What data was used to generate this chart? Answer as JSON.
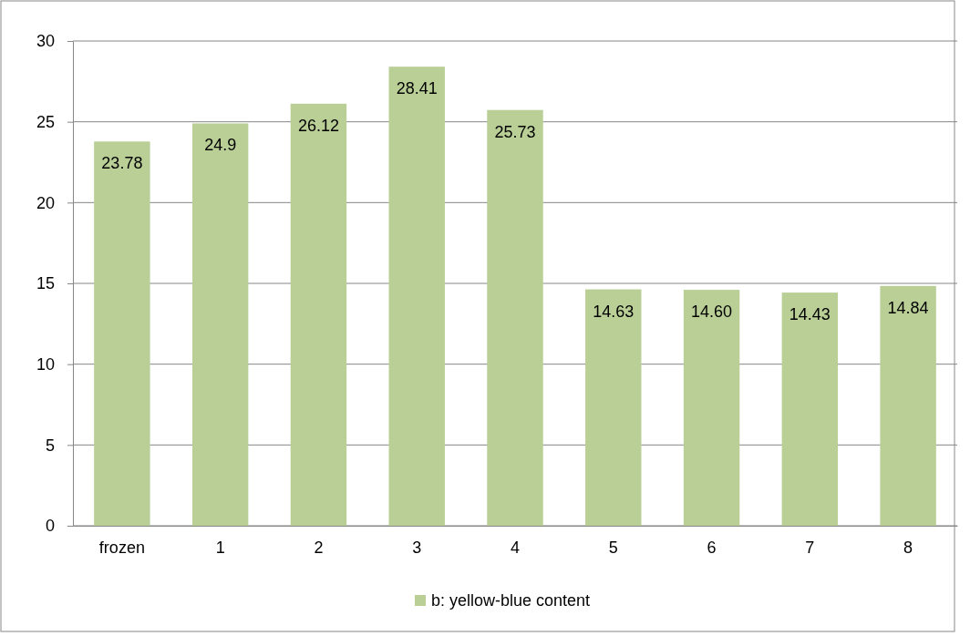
{
  "chart_data": {
    "type": "bar",
    "categories": [
      "frozen",
      "1",
      "2",
      "3",
      "4",
      "5",
      "6",
      "7",
      "8"
    ],
    "series": [
      {
        "name": "b: yellow-blue content",
        "color": "#b9cf96",
        "values": [
          23.78,
          24.9,
          26.12,
          28.41,
          25.73,
          14.63,
          14.6,
          14.43,
          14.84
        ],
        "value_labels": [
          "23.78",
          "24.9",
          "26.12",
          "28.41",
          "25.73",
          "14.63",
          "14.60",
          "14.43",
          "14.84"
        ]
      }
    ],
    "ylim": [
      0,
      30
    ],
    "yticks": [
      0,
      5,
      10,
      15,
      20,
      25,
      30
    ],
    "grid": "y",
    "legend": "bottom"
  }
}
